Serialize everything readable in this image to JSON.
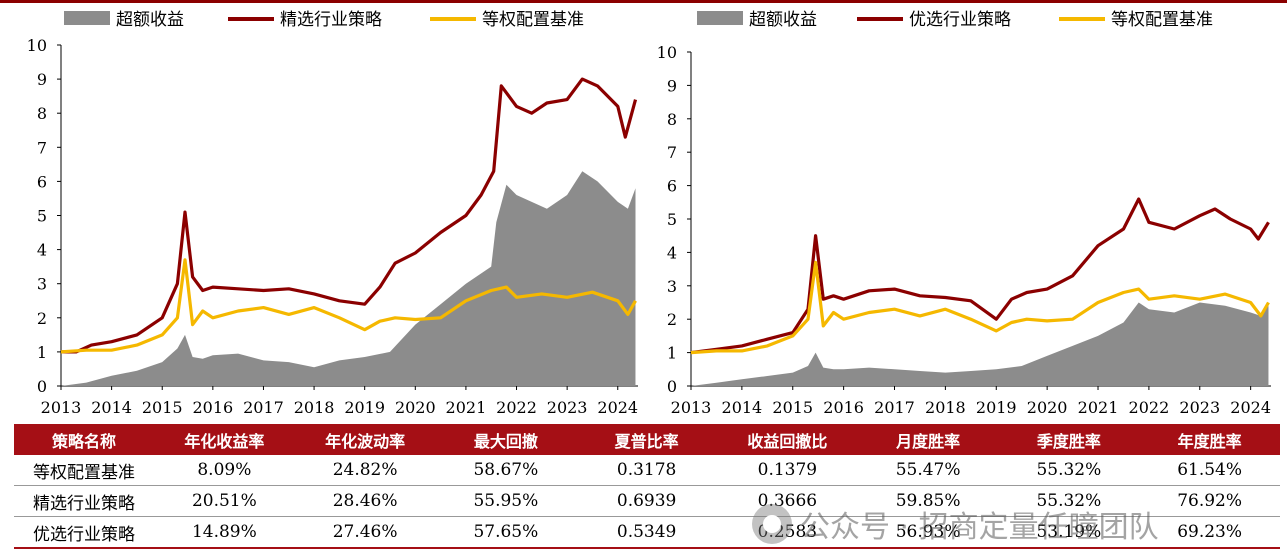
{
  "colors": {
    "excess": "#8c8c8c",
    "strategy": "#8b0000",
    "benchmark": "#f5b800",
    "table_header": "#a50f15"
  },
  "chart_data": [
    {
      "type": "area",
      "title": "",
      "xlabel": "",
      "ylabel": "",
      "xlim": [
        2013,
        2024.4
      ],
      "ylim": [
        0,
        10
      ],
      "yticks": [
        0,
        1,
        2,
        3,
        4,
        5,
        6,
        7,
        8,
        9,
        10
      ],
      "x_tick_labels": [
        "2013",
        "2014",
        "2015",
        "2016",
        "2017",
        "2018",
        "2019",
        "2020",
        "2021",
        "2022",
        "2023",
        "2024"
      ],
      "legend_position": "top",
      "series": [
        {
          "name": "超额收益",
          "type": "area",
          "color": "#8c8c8c",
          "x": [
            2013.0,
            2013.5,
            2014.0,
            2014.5,
            2015.0,
            2015.3,
            2015.45,
            2015.6,
            2015.8,
            2016.0,
            2016.5,
            2017.0,
            2017.5,
            2018.0,
            2018.5,
            2019.0,
            2019.5,
            2020.0,
            2020.5,
            2021.0,
            2021.5,
            2021.6,
            2021.8,
            2022.0,
            2022.3,
            2022.6,
            2023.0,
            2023.3,
            2023.6,
            2024.0,
            2024.2,
            2024.35
          ],
          "y": [
            0.0,
            0.1,
            0.3,
            0.45,
            0.7,
            1.1,
            1.5,
            0.85,
            0.8,
            0.9,
            0.95,
            0.75,
            0.7,
            0.55,
            0.75,
            0.85,
            1.0,
            1.8,
            2.4,
            3.0,
            3.5,
            4.8,
            5.9,
            5.6,
            5.4,
            5.2,
            5.6,
            6.3,
            6.0,
            5.4,
            5.2,
            5.8
          ]
        },
        {
          "name": "精选行业策略",
          "type": "line",
          "color": "#8b0000",
          "x": [
            2013.0,
            2013.3,
            2013.6,
            2014.0,
            2014.5,
            2015.0,
            2015.3,
            2015.45,
            2015.6,
            2015.8,
            2016.0,
            2016.5,
            2017.0,
            2017.5,
            2018.0,
            2018.5,
            2019.0,
            2019.3,
            2019.6,
            2020.0,
            2020.5,
            2021.0,
            2021.3,
            2021.55,
            2021.7,
            2022.0,
            2022.3,
            2022.6,
            2023.0,
            2023.3,
            2023.6,
            2024.0,
            2024.15,
            2024.35
          ],
          "y": [
            1.0,
            1.0,
            1.2,
            1.3,
            1.5,
            2.0,
            3.0,
            5.1,
            3.2,
            2.8,
            2.9,
            2.85,
            2.8,
            2.85,
            2.7,
            2.5,
            2.4,
            2.9,
            3.6,
            3.9,
            4.5,
            5.0,
            5.6,
            6.3,
            8.8,
            8.2,
            8.0,
            8.3,
            8.4,
            9.0,
            8.8,
            8.2,
            7.3,
            8.4
          ]
        },
        {
          "name": "等权配置基准",
          "type": "line",
          "color": "#f5b800",
          "x": [
            2013.0,
            2013.5,
            2014.0,
            2014.5,
            2015.0,
            2015.3,
            2015.45,
            2015.6,
            2015.8,
            2016.0,
            2016.5,
            2017.0,
            2017.5,
            2018.0,
            2018.5,
            2019.0,
            2019.3,
            2019.6,
            2020.0,
            2020.5,
            2021.0,
            2021.5,
            2021.8,
            2022.0,
            2022.5,
            2023.0,
            2023.5,
            2024.0,
            2024.2,
            2024.35
          ],
          "y": [
            1.0,
            1.05,
            1.05,
            1.2,
            1.5,
            2.0,
            3.7,
            1.8,
            2.2,
            2.0,
            2.2,
            2.3,
            2.1,
            2.3,
            2.0,
            1.65,
            1.9,
            2.0,
            1.95,
            2.0,
            2.5,
            2.8,
            2.9,
            2.6,
            2.7,
            2.6,
            2.75,
            2.5,
            2.1,
            2.5
          ]
        }
      ]
    },
    {
      "type": "area",
      "title": "",
      "xlabel": "",
      "ylabel": "",
      "xlim": [
        2013,
        2024.4
      ],
      "ylim": [
        0,
        10
      ],
      "yticks": [
        0,
        1,
        2,
        3,
        4,
        5,
        6,
        7,
        8,
        9,
        10
      ],
      "x_tick_labels": [
        "2013",
        "2014",
        "2015",
        "2016",
        "2017",
        "2018",
        "2019",
        "2020",
        "2021",
        "2022",
        "2023",
        "2024"
      ],
      "legend_position": "top",
      "series": [
        {
          "name": "超额收益",
          "type": "area",
          "color": "#8c8c8c",
          "x": [
            2013.0,
            2013.5,
            2014.0,
            2014.5,
            2015.0,
            2015.3,
            2015.45,
            2015.6,
            2015.8,
            2016.0,
            2016.5,
            2017.0,
            2017.5,
            2018.0,
            2018.5,
            2019.0,
            2019.5,
            2020.0,
            2020.5,
            2021.0,
            2021.5,
            2021.8,
            2022.0,
            2022.5,
            2023.0,
            2023.5,
            2024.0,
            2024.2,
            2024.35
          ],
          "y": [
            0.0,
            0.1,
            0.2,
            0.3,
            0.4,
            0.6,
            1.0,
            0.55,
            0.5,
            0.5,
            0.55,
            0.5,
            0.45,
            0.4,
            0.45,
            0.5,
            0.6,
            0.9,
            1.2,
            1.5,
            1.9,
            2.5,
            2.3,
            2.2,
            2.5,
            2.4,
            2.2,
            2.1,
            2.4
          ]
        },
        {
          "name": "优选行业策略",
          "type": "line",
          "color": "#8b0000",
          "x": [
            2013.0,
            2013.5,
            2014.0,
            2014.5,
            2015.0,
            2015.3,
            2015.45,
            2015.6,
            2015.8,
            2016.0,
            2016.5,
            2017.0,
            2017.5,
            2018.0,
            2018.5,
            2019.0,
            2019.3,
            2019.6,
            2020.0,
            2020.5,
            2021.0,
            2021.5,
            2021.8,
            2022.0,
            2022.5,
            2023.0,
            2023.3,
            2023.6,
            2024.0,
            2024.15,
            2024.35
          ],
          "y": [
            1.0,
            1.1,
            1.2,
            1.4,
            1.6,
            2.3,
            4.5,
            2.6,
            2.7,
            2.6,
            2.85,
            2.9,
            2.7,
            2.65,
            2.55,
            2.0,
            2.6,
            2.8,
            2.9,
            3.3,
            4.2,
            4.7,
            5.6,
            4.9,
            4.7,
            5.1,
            5.3,
            5.0,
            4.7,
            4.4,
            4.9
          ]
        },
        {
          "name": "等权配置基准",
          "type": "line",
          "color": "#f5b800",
          "x": [
            2013.0,
            2013.5,
            2014.0,
            2014.5,
            2015.0,
            2015.3,
            2015.45,
            2015.6,
            2015.8,
            2016.0,
            2016.5,
            2017.0,
            2017.5,
            2018.0,
            2018.5,
            2019.0,
            2019.3,
            2019.6,
            2020.0,
            2020.5,
            2021.0,
            2021.5,
            2021.8,
            2022.0,
            2022.5,
            2023.0,
            2023.5,
            2024.0,
            2024.2,
            2024.35
          ],
          "y": [
            1.0,
            1.05,
            1.05,
            1.2,
            1.5,
            2.0,
            3.7,
            1.8,
            2.2,
            2.0,
            2.2,
            2.3,
            2.1,
            2.3,
            2.0,
            1.65,
            1.9,
            2.0,
            1.95,
            2.0,
            2.5,
            2.8,
            2.9,
            2.6,
            2.7,
            2.6,
            2.75,
            2.5,
            2.1,
            2.5
          ]
        }
      ]
    }
  ],
  "table": {
    "headers": [
      "策略名称",
      "年化收益率",
      "年化波动率",
      "最大回撤",
      "夏普比率",
      "收益回撤比",
      "月度胜率",
      "季度胜率",
      "年度胜率"
    ],
    "rows": [
      [
        "等权配置基准",
        "8.09%",
        "24.82%",
        "58.67%",
        "0.3178",
        "0.1379",
        "55.47%",
        "55.32%",
        "61.54%"
      ],
      [
        "精选行业策略",
        "20.51%",
        "28.46%",
        "55.95%",
        "0.6939",
        "0.3666",
        "59.85%",
        "55.32%",
        "76.92%"
      ],
      [
        "优选行业策略",
        "14.89%",
        "27.46%",
        "57.65%",
        "0.5349",
        "0.2583",
        "56.93%",
        "53.19%",
        "69.23%"
      ]
    ]
  },
  "watermark": {
    "text": "公众号 · 招商定量任瞳团队"
  }
}
